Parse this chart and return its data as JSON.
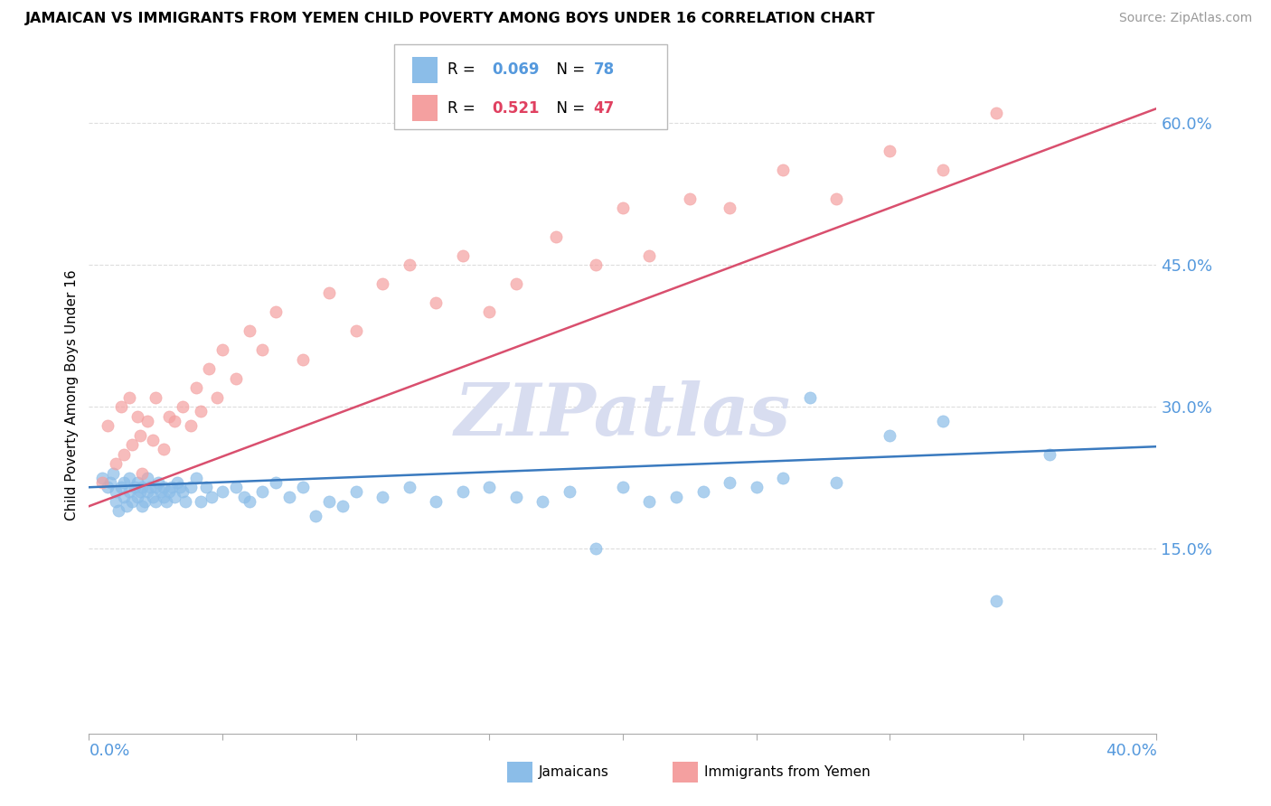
{
  "title": "JAMAICAN VS IMMIGRANTS FROM YEMEN CHILD POVERTY AMONG BOYS UNDER 16 CORRELATION CHART",
  "source": "Source: ZipAtlas.com",
  "ylabel": "Child Poverty Among Boys Under 16",
  "xmin": 0.0,
  "xmax": 0.4,
  "ymin": -0.045,
  "ymax": 0.67,
  "color_blue": "#8bbde8",
  "color_pink": "#f4a0a0",
  "color_trend_blue": "#3a7abf",
  "color_trend_pink": "#d94f6e",
  "watermark": "ZIPatlas",
  "watermark_color": "#d8ddf0",
  "jamaicans_x": [
    0.005,
    0.007,
    0.008,
    0.009,
    0.01,
    0.01,
    0.011,
    0.012,
    0.013,
    0.013,
    0.014,
    0.015,
    0.015,
    0.016,
    0.017,
    0.018,
    0.018,
    0.019,
    0.02,
    0.02,
    0.021,
    0.022,
    0.022,
    0.023,
    0.024,
    0.025,
    0.025,
    0.026,
    0.027,
    0.028,
    0.028,
    0.029,
    0.03,
    0.031,
    0.032,
    0.033,
    0.034,
    0.035,
    0.036,
    0.038,
    0.04,
    0.042,
    0.044,
    0.046,
    0.05,
    0.055,
    0.058,
    0.06,
    0.065,
    0.07,
    0.075,
    0.08,
    0.085,
    0.09,
    0.095,
    0.1,
    0.11,
    0.12,
    0.13,
    0.14,
    0.15,
    0.16,
    0.17,
    0.18,
    0.2,
    0.21,
    0.22,
    0.23,
    0.24,
    0.25,
    0.26,
    0.28,
    0.3,
    0.32,
    0.34,
    0.36,
    0.27,
    0.19
  ],
  "jamaicans_y": [
    0.225,
    0.215,
    0.22,
    0.23,
    0.2,
    0.21,
    0.19,
    0.215,
    0.205,
    0.22,
    0.195,
    0.225,
    0.21,
    0.2,
    0.215,
    0.22,
    0.205,
    0.21,
    0.195,
    0.215,
    0.2,
    0.21,
    0.225,
    0.215,
    0.205,
    0.2,
    0.215,
    0.22,
    0.21,
    0.205,
    0.215,
    0.2,
    0.21,
    0.215,
    0.205,
    0.22,
    0.215,
    0.21,
    0.2,
    0.215,
    0.225,
    0.2,
    0.215,
    0.205,
    0.21,
    0.215,
    0.205,
    0.2,
    0.21,
    0.22,
    0.205,
    0.215,
    0.185,
    0.2,
    0.195,
    0.21,
    0.205,
    0.215,
    0.2,
    0.21,
    0.215,
    0.205,
    0.2,
    0.21,
    0.215,
    0.2,
    0.205,
    0.21,
    0.22,
    0.215,
    0.225,
    0.22,
    0.27,
    0.285,
    0.095,
    0.25,
    0.31,
    0.15
  ],
  "yemen_x": [
    0.005,
    0.007,
    0.01,
    0.012,
    0.013,
    0.015,
    0.016,
    0.018,
    0.019,
    0.02,
    0.022,
    0.024,
    0.025,
    0.028,
    0.03,
    0.032,
    0.035,
    0.038,
    0.04,
    0.042,
    0.045,
    0.048,
    0.05,
    0.055,
    0.06,
    0.065,
    0.07,
    0.08,
    0.09,
    0.1,
    0.11,
    0.12,
    0.13,
    0.14,
    0.15,
    0.16,
    0.175,
    0.19,
    0.2,
    0.21,
    0.225,
    0.24,
    0.26,
    0.28,
    0.3,
    0.32,
    0.34
  ],
  "yemen_y": [
    0.22,
    0.28,
    0.24,
    0.3,
    0.25,
    0.31,
    0.26,
    0.29,
    0.27,
    0.23,
    0.285,
    0.265,
    0.31,
    0.255,
    0.29,
    0.285,
    0.3,
    0.28,
    0.32,
    0.295,
    0.34,
    0.31,
    0.36,
    0.33,
    0.38,
    0.36,
    0.4,
    0.35,
    0.42,
    0.38,
    0.43,
    0.45,
    0.41,
    0.46,
    0.4,
    0.43,
    0.48,
    0.45,
    0.51,
    0.46,
    0.52,
    0.51,
    0.55,
    0.52,
    0.57,
    0.55,
    0.61
  ],
  "trend_blue_x0": 0.0,
  "trend_blue_x1": 0.4,
  "trend_blue_y0": 0.215,
  "trend_blue_y1": 0.258,
  "trend_pink_x0": 0.0,
  "trend_pink_x1": 0.4,
  "trend_pink_y0": 0.195,
  "trend_pink_y1": 0.615,
  "ytick_vals": [
    0.15,
    0.3,
    0.45,
    0.6
  ],
  "ytick_labels": [
    "15.0%",
    "30.0%",
    "45.0%",
    "60.0%"
  ],
  "tick_color": "#5599dd",
  "grid_color": "#dddddd",
  "spine_color": "#aaaaaa"
}
